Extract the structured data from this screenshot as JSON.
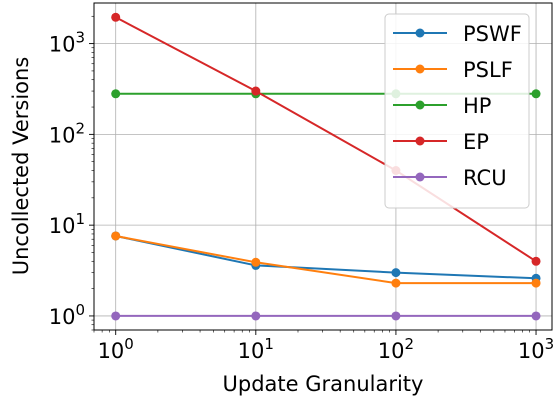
{
  "chart_data": {
    "type": "line",
    "title": "",
    "xlabel": "Update Granularity",
    "ylabel": "Uncollected Versions",
    "xscale": "log",
    "yscale": "log",
    "x": [
      1,
      10,
      100,
      1000
    ],
    "xlim": [
      0.7,
      1300
    ],
    "ylim": [
      0.7,
      2800
    ],
    "xticks": [
      1,
      10,
      100,
      1000
    ],
    "yticks": [
      1,
      10,
      100,
      1000
    ],
    "grid": true,
    "legend_position": "top-right",
    "series": [
      {
        "name": "PSWF",
        "color": "#1f77b4",
        "values": [
          7.6,
          3.6,
          3.0,
          2.6
        ]
      },
      {
        "name": "PSLF",
        "color": "#ff7f0e",
        "values": [
          7.6,
          3.9,
          2.3,
          2.3
        ]
      },
      {
        "name": "HP",
        "color": "#2ca02c",
        "values": [
          280,
          280,
          280,
          280
        ]
      },
      {
        "name": "EP",
        "color": "#d62728",
        "values": [
          1950,
          300,
          40,
          4.0
        ]
      },
      {
        "name": "RCU",
        "color": "#9467bd",
        "values": [
          1,
          1,
          1,
          1
        ]
      }
    ]
  }
}
